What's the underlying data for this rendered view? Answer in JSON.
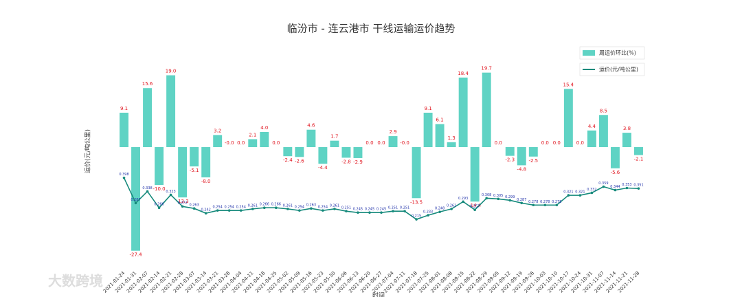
{
  "chart_data": {
    "type": "bar-line",
    "title": "临汾市 - 连云港市 干线运输运价趋势",
    "x_label": "时间",
    "y_label": "运价(元/吨公里)",
    "watermark": "大数跨境",
    "legend": "top-right",
    "categories": [
      "2021-01-24",
      "2021-01-31",
      "2021-02-07",
      "2021-02-14",
      "2021-02-21",
      "2021-02-28",
      "2021-03-07",
      "2021-03-14",
      "2021-03-21",
      "2021-03-28",
      "2021-04-04",
      "2021-04-11",
      "2021-04-18",
      "2021-04-25",
      "2021-05-02",
      "2021-05-09",
      "2021-05-16",
      "2021-05-23",
      "2021-05-30",
      "2021-06-06",
      "2021-06-13",
      "2021-06-20",
      "2021-06-27",
      "2021-07-04",
      "2021-07-11",
      "2021-07-18",
      "2021-07-25",
      "2021-08-01",
      "2021-08-08",
      "2021-08-15",
      "2021-08-22",
      "2021-08-29",
      "2021-09-05",
      "2021-09-12",
      "2021-09-19",
      "2021-09-26",
      "2021-10-03",
      "2021-10-10",
      "2021-10-17",
      "2021-10-24",
      "2021-10-31",
      "2021-11-07",
      "2021-11-14",
      "2021-11-21",
      "2021-11-28"
    ],
    "ylim": [
      -32,
      28
    ],
    "y2lim": [
      0,
      1.0
    ],
    "series": [
      {
        "name": "周运价环比(%)",
        "type": "bar",
        "color": "#5fd3c4",
        "label_color": "#e0141e",
        "values": [
          9.1,
          -27.4,
          15.6,
          -10.0,
          19.0,
          -13.3,
          -5.1,
          -8.0,
          3.2,
          0,
          0,
          2.1,
          4.0,
          0,
          -2.4,
          -2.6,
          4.6,
          -4.4,
          1.7,
          -2.8,
          -2.9,
          0,
          0,
          2.9,
          0,
          -13.5,
          9.1,
          6.1,
          1.3,
          18.4,
          -14.4,
          19.7,
          0,
          -2.3,
          -4.8,
          -2.5,
          0,
          0,
          15.4,
          0,
          4.4,
          8.5,
          -5.6,
          3.8,
          -2.1
        ],
        "value_labels": [
          "9.1",
          "-27.4",
          "15.6",
          "-10.0",
          "19.0",
          "-13.3",
          "-5.1",
          "-8.0",
          "3.2",
          "-0.0",
          "0.0",
          "2.1",
          "4.0",
          "0.0",
          "-2.4",
          "-2.6",
          "4.6",
          "-4.4",
          "1.7",
          "-2.8",
          "-2.9",
          "0.0",
          "0.0",
          "2.9",
          "-0.0",
          "-13.5",
          "9.1",
          "6.1",
          "1.3",
          "18.4",
          "-14.4",
          "19.7",
          "0.0",
          "-2.3",
          "-4.8",
          "-2.5",
          "0.0",
          "0.0",
          "15.4",
          "0.0",
          "4.4",
          "8.5",
          "-5.6",
          "3.8",
          "-2.1"
        ]
      },
      {
        "name": "运价(元/吨公里)",
        "type": "line",
        "axis": "y2",
        "color": "#168a7c",
        "label_color": "#2233aa",
        "values": [
          0.398,
          0.287,
          0.338,
          0.266,
          0.323,
          0.272,
          0.263,
          0.242,
          0.254,
          0.254,
          0.254,
          0.261,
          0.266,
          0.266,
          0.261,
          0.254,
          0.263,
          0.254,
          0.261,
          0.251,
          0.245,
          0.245,
          0.245,
          0.251,
          0.251,
          0.215,
          0.233,
          0.248,
          0.261,
          0.293,
          0.257,
          0.308,
          0.305,
          0.299,
          0.287,
          0.278,
          0.278,
          0.278,
          0.321,
          0.321,
          0.332,
          0.359,
          0.344,
          0.353,
          0.351
        ]
      }
    ]
  }
}
